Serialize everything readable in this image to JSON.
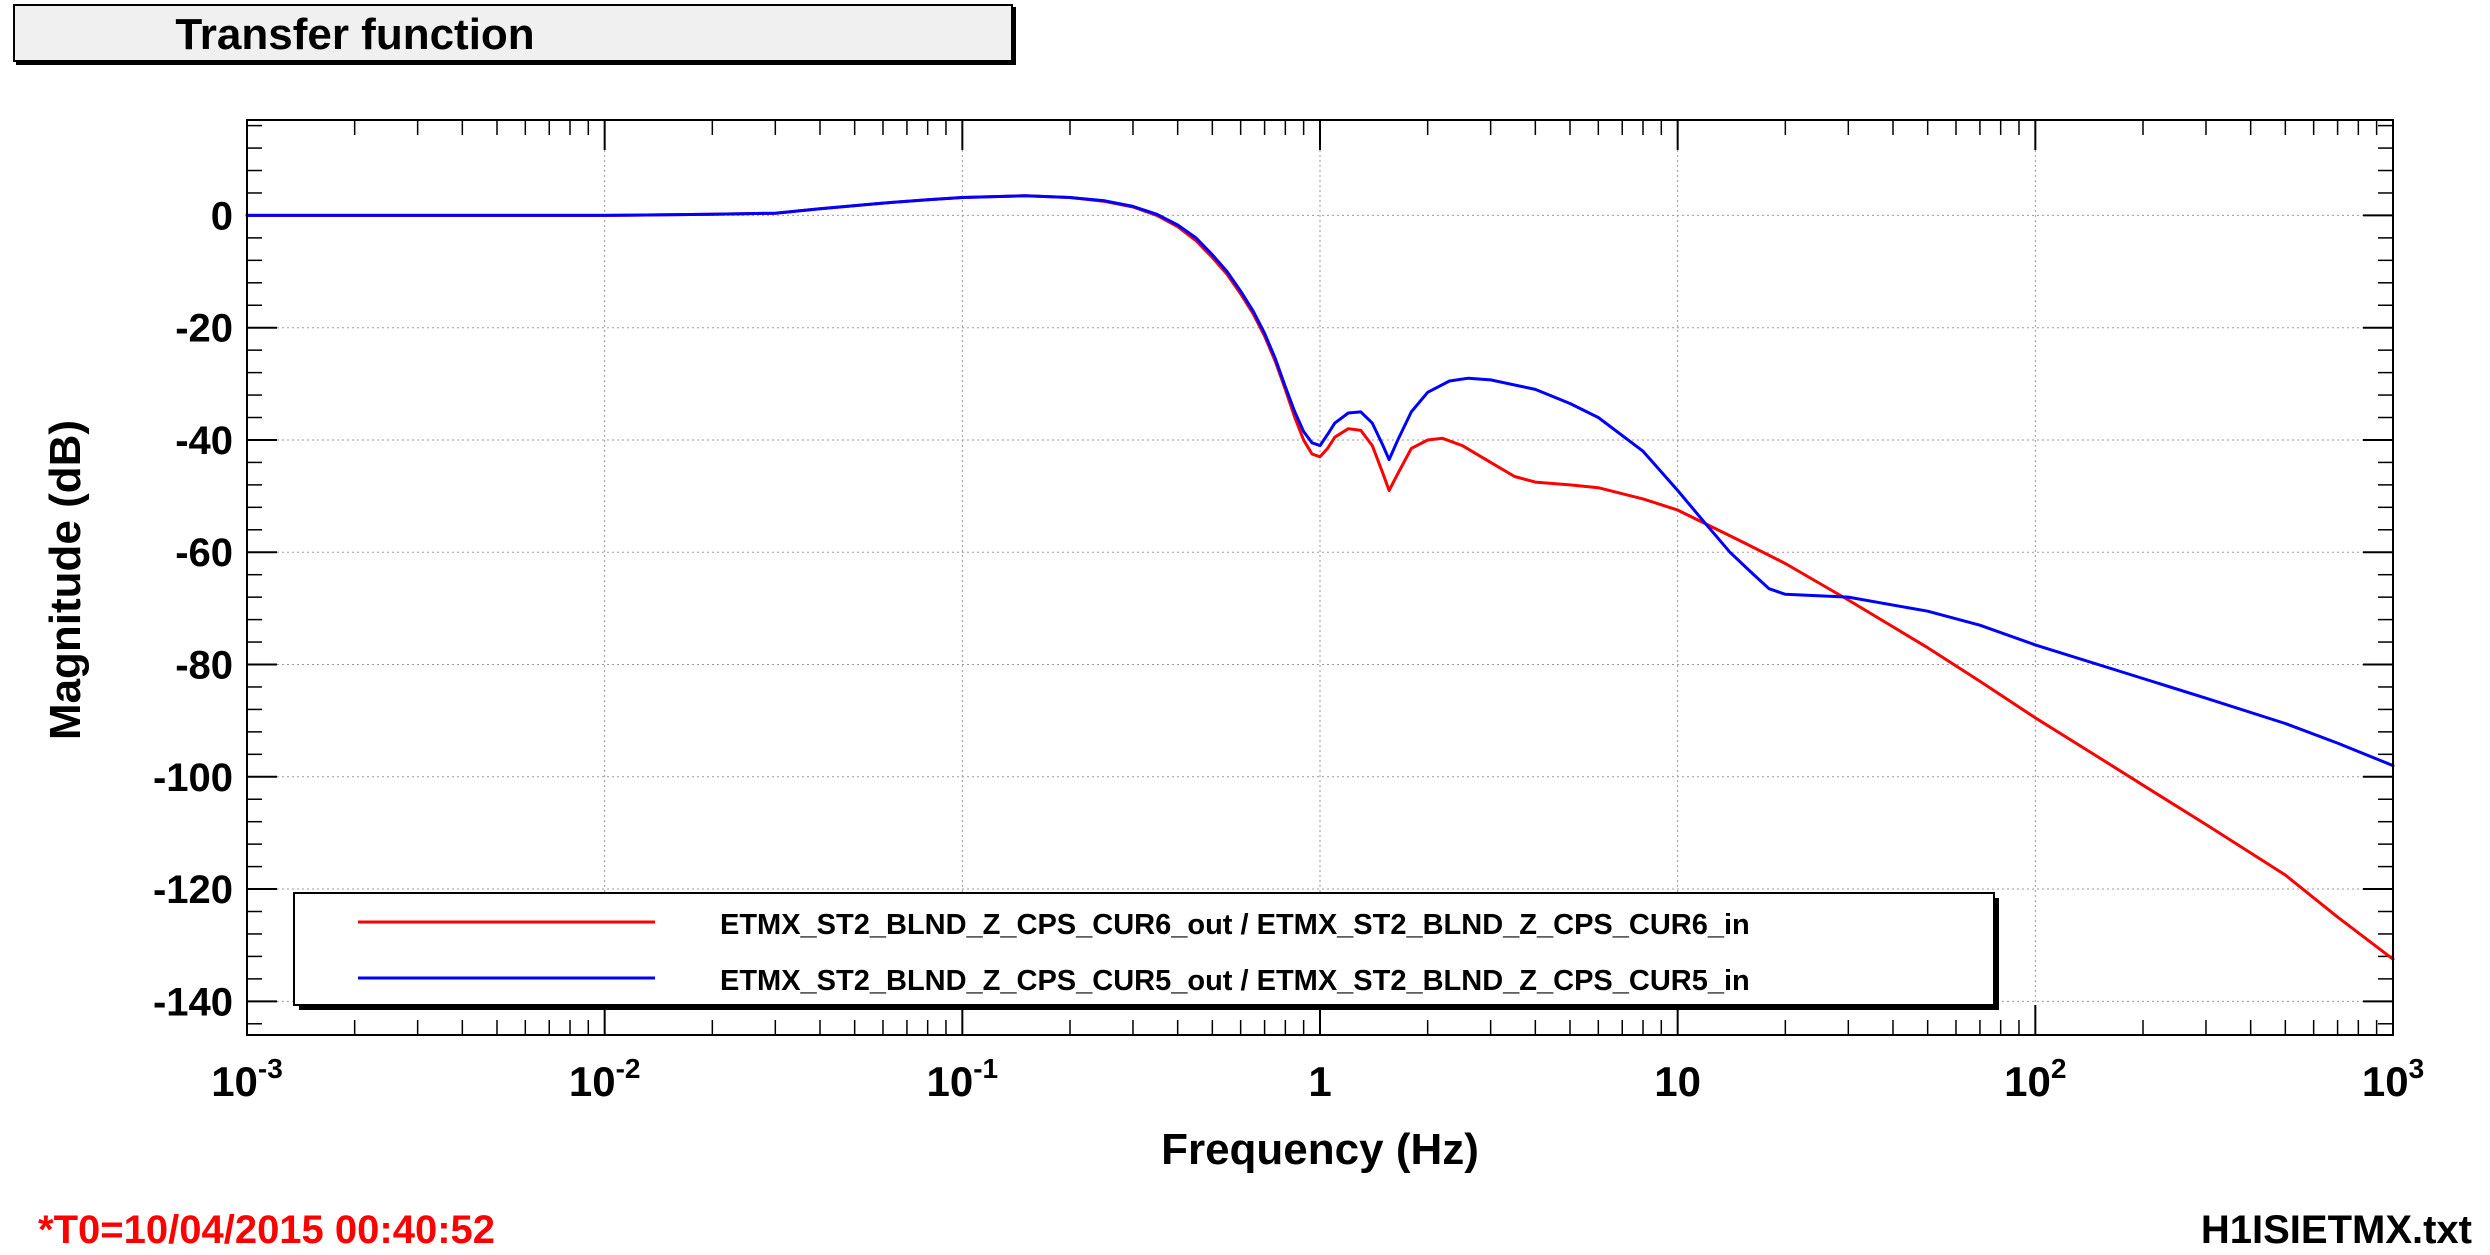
{
  "title": "Transfer function",
  "footer": {
    "timestamp": "*T0=10/04/2015 00:40:52",
    "filename": "H1ISIETMX.txt"
  },
  "chart_data": {
    "type": "line",
    "title": "Transfer function",
    "xlabel": "Frequency (Hz)",
    "ylabel": "Magnitude (dB)",
    "xscale": "log",
    "xlim": [
      0.001,
      1000
    ],
    "ylim": [
      -146,
      17
    ],
    "grid": true,
    "legend_position": "bottom",
    "x_ticks": [
      {
        "value": 0.001,
        "base": "10",
        "exp": "-3"
      },
      {
        "value": 0.01,
        "base": "10",
        "exp": "-2"
      },
      {
        "value": 0.1,
        "base": "10",
        "exp": "-1"
      },
      {
        "value": 1,
        "base": "1",
        "exp": ""
      },
      {
        "value": 10,
        "base": "10",
        "exp": ""
      },
      {
        "value": 100,
        "base": "10",
        "exp": "2"
      },
      {
        "value": 1000,
        "base": "10",
        "exp": "3"
      }
    ],
    "y_ticks": [
      0,
      -20,
      -40,
      -60,
      -80,
      -100,
      -120,
      -140
    ],
    "series": [
      {
        "name": "ETMX_ST2_BLND_Z_CPS_CUR6_out / ETMX_ST2_BLND_Z_CPS_CUR6_in",
        "color": "#ff0000",
        "points": [
          [
            0.001,
            0
          ],
          [
            0.005,
            0
          ],
          [
            0.01,
            0
          ],
          [
            0.02,
            0.2
          ],
          [
            0.03,
            0.4
          ],
          [
            0.04,
            1.2
          ],
          [
            0.06,
            2.2
          ],
          [
            0.08,
            2.8
          ],
          [
            0.1,
            3.2
          ],
          [
            0.15,
            3.5
          ],
          [
            0.2,
            3.2
          ],
          [
            0.25,
            2.5
          ],
          [
            0.3,
            1.5
          ],
          [
            0.35,
            0
          ],
          [
            0.4,
            -2
          ],
          [
            0.45,
            -4.5
          ],
          [
            0.5,
            -7.5
          ],
          [
            0.55,
            -10.5
          ],
          [
            0.6,
            -14
          ],
          [
            0.65,
            -17.5
          ],
          [
            0.7,
            -21.5
          ],
          [
            0.75,
            -26
          ],
          [
            0.8,
            -31
          ],
          [
            0.85,
            -36
          ],
          [
            0.9,
            -40
          ],
          [
            0.95,
            -42.5
          ],
          [
            1.0,
            -43
          ],
          [
            1.05,
            -41.5
          ],
          [
            1.1,
            -39.5
          ],
          [
            1.2,
            -38
          ],
          [
            1.3,
            -38.3
          ],
          [
            1.4,
            -41
          ],
          [
            1.5,
            -46
          ],
          [
            1.56,
            -49
          ],
          [
            1.65,
            -46
          ],
          [
            1.8,
            -41.5
          ],
          [
            2.0,
            -40
          ],
          [
            2.2,
            -39.7
          ],
          [
            2.5,
            -41
          ],
          [
            3.0,
            -44
          ],
          [
            3.5,
            -46.5
          ],
          [
            4,
            -47.5
          ],
          [
            5,
            -48
          ],
          [
            6,
            -48.5
          ],
          [
            8,
            -50.5
          ],
          [
            10,
            -52.5
          ],
          [
            15,
            -58
          ],
          [
            20,
            -62
          ],
          [
            30,
            -68.5
          ],
          [
            50,
            -77
          ],
          [
            70,
            -83
          ],
          [
            100,
            -89.5
          ],
          [
            150,
            -96.5
          ],
          [
            200,
            -101.5
          ],
          [
            300,
            -108.5
          ],
          [
            500,
            -117.5
          ],
          [
            700,
            -125
          ],
          [
            1000,
            -132.5
          ]
        ]
      },
      {
        "name": "ETMX_ST2_BLND_Z_CPS_CUR5_out / ETMX_ST2_BLND_Z_CPS_CUR5_in",
        "color": "#0000ff",
        "points": [
          [
            0.001,
            0
          ],
          [
            0.005,
            0
          ],
          [
            0.01,
            0
          ],
          [
            0.02,
            0.2
          ],
          [
            0.03,
            0.4
          ],
          [
            0.04,
            1.2
          ],
          [
            0.06,
            2.2
          ],
          [
            0.08,
            2.8
          ],
          [
            0.1,
            3.2
          ],
          [
            0.15,
            3.5
          ],
          [
            0.2,
            3.2
          ],
          [
            0.25,
            2.6
          ],
          [
            0.3,
            1.6
          ],
          [
            0.35,
            0.2
          ],
          [
            0.4,
            -1.7
          ],
          [
            0.45,
            -4
          ],
          [
            0.5,
            -7
          ],
          [
            0.55,
            -10
          ],
          [
            0.6,
            -13.5
          ],
          [
            0.65,
            -17
          ],
          [
            0.7,
            -21
          ],
          [
            0.75,
            -25.5
          ],
          [
            0.8,
            -30.5
          ],
          [
            0.85,
            -35
          ],
          [
            0.9,
            -38.5
          ],
          [
            0.95,
            -40.5
          ],
          [
            1.0,
            -41
          ],
          [
            1.05,
            -39
          ],
          [
            1.1,
            -37
          ],
          [
            1.2,
            -35.2
          ],
          [
            1.3,
            -35
          ],
          [
            1.4,
            -37
          ],
          [
            1.5,
            -41
          ],
          [
            1.56,
            -43.5
          ],
          [
            1.65,
            -40
          ],
          [
            1.8,
            -35
          ],
          [
            2.0,
            -31.5
          ],
          [
            2.3,
            -29.5
          ],
          [
            2.6,
            -29
          ],
          [
            3.0,
            -29.3
          ],
          [
            4,
            -31
          ],
          [
            5,
            -33.5
          ],
          [
            6,
            -36
          ],
          [
            8,
            -42
          ],
          [
            10,
            -49
          ],
          [
            12,
            -55
          ],
          [
            14,
            -60
          ],
          [
            16,
            -63.5
          ],
          [
            18,
            -66.5
          ],
          [
            20,
            -67.5
          ],
          [
            30,
            -68
          ],
          [
            50,
            -70.5
          ],
          [
            70,
            -73
          ],
          [
            100,
            -76.5
          ],
          [
            200,
            -82.5
          ],
          [
            300,
            -86
          ],
          [
            500,
            -90.5
          ],
          [
            700,
            -94
          ],
          [
            1000,
            -98
          ]
        ]
      }
    ]
  }
}
